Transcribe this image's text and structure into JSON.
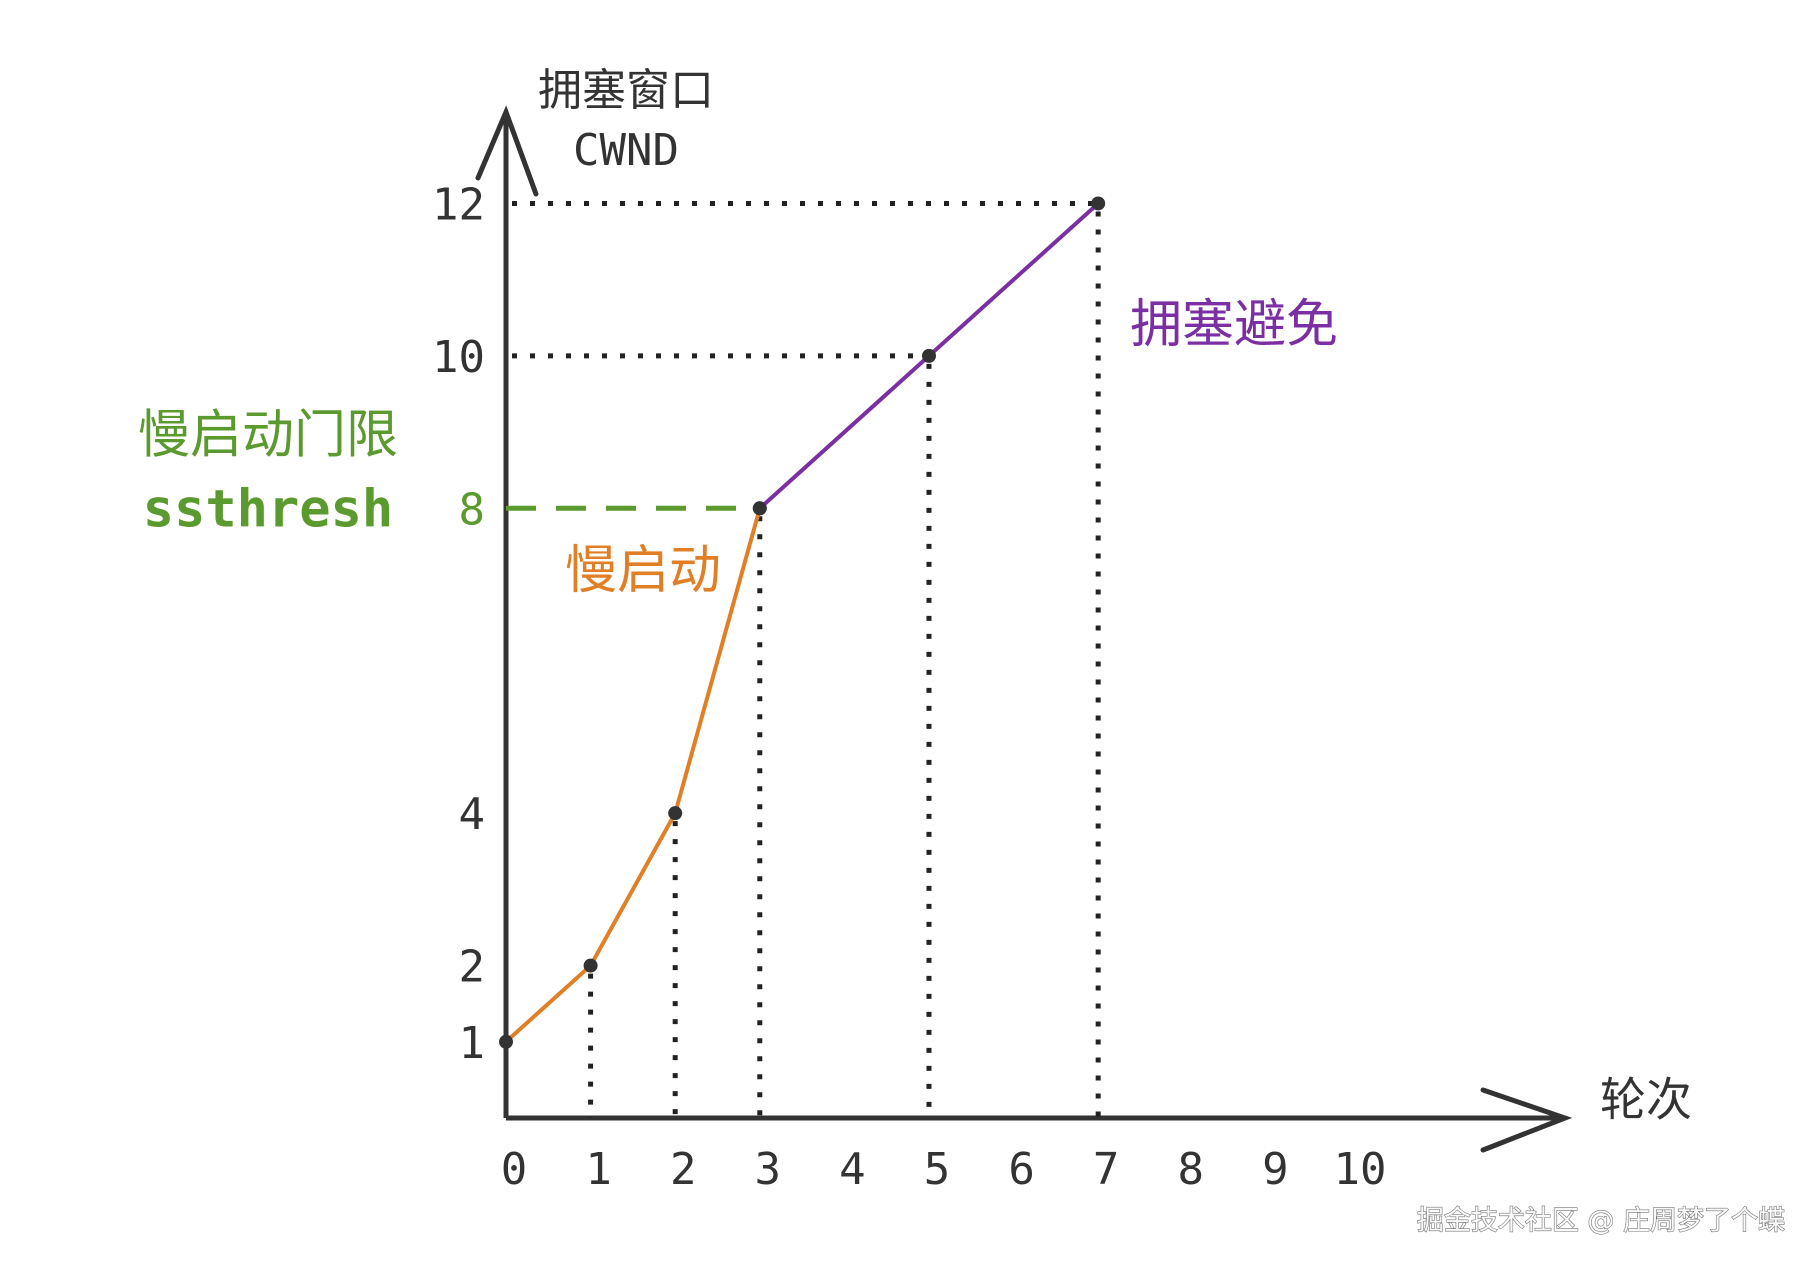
{
  "chart_data": {
    "type": "line",
    "ylabel": [
      "拥塞窗口",
      "CWND"
    ],
    "xlabel": "轮次",
    "xlim": [
      0,
      12.4
    ],
    "xticks": [
      0,
      1,
      2,
      3,
      4,
      5,
      6,
      7,
      8,
      9,
      10
    ],
    "ylim": [
      0,
      13.2
    ],
    "yticks": [
      1,
      2,
      4,
      8,
      10,
      12
    ],
    "grid": false,
    "series": [
      {
        "name": "慢启动",
        "color": "#e07f25",
        "x": [
          0,
          1,
          2,
          3
        ],
        "values": [
          1,
          2,
          4,
          8
        ]
      },
      {
        "name": "拥塞避免",
        "color": "#7b2fa3",
        "x": [
          3,
          5,
          7
        ],
        "values": [
          8,
          10,
          12
        ]
      }
    ],
    "threshold": {
      "label": [
        "慢启动门限",
        "ssthresh"
      ],
      "value": 8,
      "color": "#5b9a2e"
    }
  },
  "watermark": "掘金技术社区 @ 庄周梦了个蝶"
}
